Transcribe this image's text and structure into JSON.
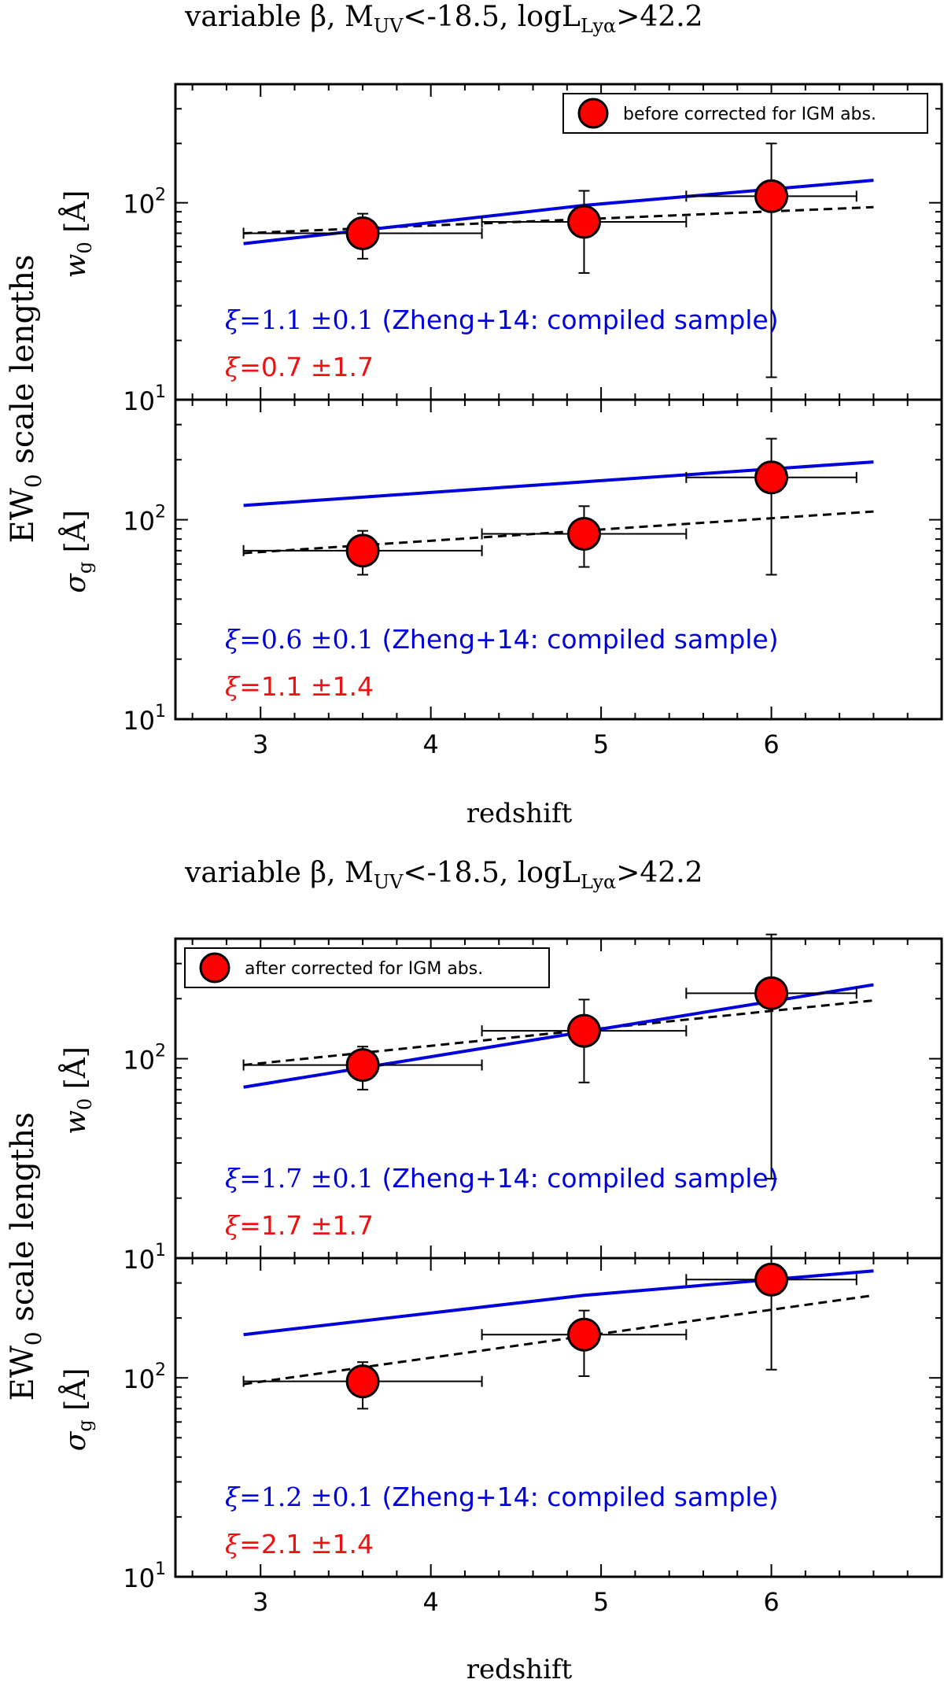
{
  "chart_data": [
    {
      "type": "scatter",
      "title": {
        "prefix": "variable β, M",
        "m_sub": "UV",
        "middle": "<-18.5, logL",
        "l_sub": "Lyα",
        "suffix": ">42.2"
      },
      "ylabel_shared": {
        "main": "EW",
        "sub": "0",
        "tail": " scale lengths"
      },
      "xlabel": "redshift",
      "xlim": [
        2.5,
        7.0
      ],
      "xticks": [
        "3",
        "4",
        "5",
        "6"
      ],
      "panels": [
        {
          "ylabel": {
            "main": "w",
            "sub": "0",
            "tail": " [Å]"
          },
          "ylim": [
            10,
            400
          ],
          "yticks": [
            {
              "value": 10,
              "exp": "1"
            },
            {
              "value": 100,
              "exp": "2"
            }
          ],
          "legend": {
            "label": "before corrected for IGM abs.",
            "loc": "upper-right"
          },
          "points": [
            {
              "x": 3.6,
              "y": 70,
              "xerr": [
                2.9,
                4.3
              ],
              "yerr": [
                52,
                88
              ]
            },
            {
              "x": 4.9,
              "y": 80,
              "xerr": [
                4.3,
                5.5
              ],
              "yerr": [
                44,
                115
              ]
            },
            {
              "x": 6.0,
              "y": 108,
              "xerr": [
                5.5,
                6.5
              ],
              "yerr": [
                13,
                200
              ]
            }
          ],
          "model_blue": {
            "x": [
              2.9,
              4.9,
              6.6
            ],
            "y": [
              62,
              97,
              130
            ]
          },
          "model_dashed": {
            "x": [
              2.9,
              6.6
            ],
            "y": [
              70,
              95
            ]
          },
          "annotations": [
            {
              "sym": "ξ",
              "expr": "=1.1 ±0.1",
              "label": " (Zheng+14: compiled sample)",
              "color": "#0000dd"
            },
            {
              "sym": "ξ",
              "expr": "=0.7 ±1.7",
              "label": "",
              "color": "#ee1111"
            }
          ]
        },
        {
          "ylabel": {
            "main": "σ",
            "sub": "g",
            "tail": " [Å]"
          },
          "ylim": [
            10,
            400
          ],
          "yticks": [
            {
              "value": 10,
              "exp": "1"
            },
            {
              "value": 100,
              "exp": "2"
            }
          ],
          "legend": null,
          "points": [
            {
              "x": 3.6,
              "y": 70,
              "xerr": [
                2.9,
                4.3
              ],
              "yerr": [
                53,
                88
              ]
            },
            {
              "x": 4.9,
              "y": 85,
              "xerr": [
                4.3,
                5.5
              ],
              "yerr": [
                58,
                117
              ]
            },
            {
              "x": 6.0,
              "y": 163,
              "xerr": [
                5.5,
                6.5
              ],
              "yerr": [
                53,
                255
              ]
            }
          ],
          "model_blue": {
            "x": [
              2.9,
              4.9,
              6.6
            ],
            "y": [
              118,
              155,
              195
            ]
          },
          "model_dashed": {
            "x": [
              2.9,
              6.6
            ],
            "y": [
              68,
              110
            ]
          },
          "annotations": [
            {
              "sym": "ξ",
              "expr": "=0.6 ±0.1",
              "label": " (Zheng+14: compiled sample)",
              "color": "#0000dd"
            },
            {
              "sym": "ξ",
              "expr": "=1.1 ±1.4",
              "label": "",
              "color": "#ee1111"
            }
          ]
        }
      ]
    },
    {
      "type": "scatter",
      "title": {
        "prefix": "variable β, M",
        "m_sub": "UV",
        "middle": "<-18.5, logL",
        "l_sub": "Lyα",
        "suffix": ">42.2"
      },
      "ylabel_shared": {
        "main": "EW",
        "sub": "0",
        "tail": " scale lengths"
      },
      "xlabel": "redshift",
      "xlim": [
        2.5,
        7.0
      ],
      "xticks": [
        "3",
        "4",
        "5",
        "6"
      ],
      "panels": [
        {
          "ylabel": {
            "main": "w",
            "sub": "0",
            "tail": " [Å]"
          },
          "ylim": [
            10,
            400
          ],
          "yticks": [
            {
              "value": 10,
              "exp": "1"
            },
            {
              "value": 100,
              "exp": "2"
            }
          ],
          "legend": {
            "label": "after corrected for IGM abs.",
            "loc": "upper-left"
          },
          "points": [
            {
              "x": 3.6,
              "y": 93,
              "xerr": [
                2.9,
                4.3
              ],
              "yerr": [
                70,
                115
              ]
            },
            {
              "x": 4.9,
              "y": 138,
              "xerr": [
                4.3,
                5.5
              ],
              "yerr": [
                76,
                198
              ]
            },
            {
              "x": 6.0,
              "y": 213,
              "xerr": [
                5.5,
                6.5
              ],
              "yerr": [
                25,
                420
              ]
            }
          ],
          "model_blue": {
            "x": [
              2.9,
              6.6
            ],
            "y": [
              72,
              235
            ]
          },
          "model_dashed": {
            "x": [
              2.9,
              6.6
            ],
            "y": [
              93,
              196
            ]
          },
          "annotations": [
            {
              "sym": "ξ",
              "expr": "=1.7 ±0.1",
              "label": " (Zheng+14: compiled sample)",
              "color": "#0000dd"
            },
            {
              "sym": "ξ",
              "expr": "=1.7 ±1.7",
              "label": "",
              "color": "#ee1111"
            }
          ]
        },
        {
          "ylabel": {
            "main": "σ",
            "sub": "g",
            "tail": " [Å]"
          },
          "ylim": [
            10,
            400
          ],
          "yticks": [
            {
              "value": 10,
              "exp": "1"
            },
            {
              "value": 100,
              "exp": "2"
            }
          ],
          "legend": null,
          "points": [
            {
              "x": 3.6,
              "y": 96,
              "xerr": [
                2.9,
                4.3
              ],
              "yerr": [
                70,
                120
              ]
            },
            {
              "x": 4.9,
              "y": 165,
              "xerr": [
                4.3,
                5.5
              ],
              "yerr": [
                102,
                218
              ]
            },
            {
              "x": 6.0,
              "y": 312,
              "xerr": [
                5.5,
                6.5
              ],
              "yerr": [
                110,
                312
              ]
            }
          ],
          "model_blue": {
            "x": [
              2.9,
              4.9,
              6.6
            ],
            "y": [
              165,
              260,
              345
            ]
          },
          "model_dashed": {
            "x": [
              2.9,
              6.6
            ],
            "y": [
              93,
              260
            ]
          },
          "annotations": [
            {
              "sym": "ξ",
              "expr": "=1.2 ±0.1",
              "label": " (Zheng+14: compiled sample)",
              "color": "#0000dd"
            },
            {
              "sym": "ξ",
              "expr": "=2.1 ±1.4",
              "label": "",
              "color": "#ee1111"
            }
          ]
        }
      ]
    }
  ],
  "colors": {
    "model_blue": "#0000dd",
    "point_fill": "#ff0000",
    "ink": "#000000"
  }
}
